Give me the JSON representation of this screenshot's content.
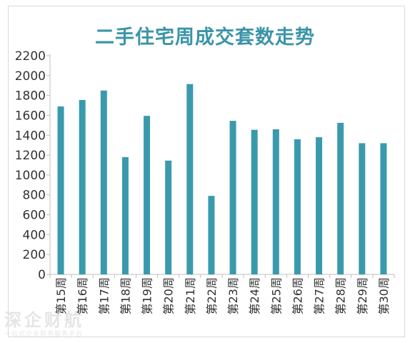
{
  "chart_data": {
    "type": "bar",
    "title": "二手住宅周成交套数走势",
    "categories": [
      "第15周",
      "第16周",
      "第17周",
      "第18周",
      "第19周",
      "第20周",
      "第21周",
      "第22周",
      "第23周",
      "第24周",
      "第25周",
      "第26周",
      "第27周",
      "第28周",
      "第29周",
      "第30周"
    ],
    "values": [
      1690,
      1755,
      1850,
      1180,
      1595,
      1145,
      1915,
      790,
      1545,
      1455,
      1460,
      1360,
      1380,
      1525,
      1320,
      1320
    ],
    "ylim": [
      0,
      2200
    ],
    "yticks": [
      0,
      200,
      400,
      600,
      800,
      1000,
      1200,
      1400,
      1600,
      1800,
      2000,
      2200
    ],
    "grid": false,
    "bar_color": "#3a9aad",
    "xlabel": "",
    "ylabel": ""
  },
  "watermark": {
    "logo": "深企财航",
    "slogan": "一站式企业财务服务平台"
  }
}
